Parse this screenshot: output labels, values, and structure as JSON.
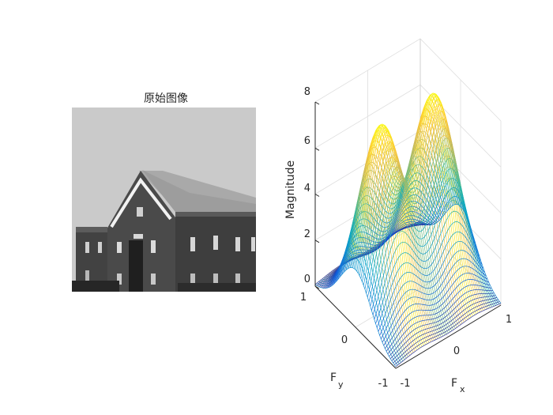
{
  "image_panel": {
    "title": "原始图像",
    "image_description_colors": {
      "sky": "#c9c9c9",
      "brick": "#3f3f3f",
      "roof": "#a8a8a8",
      "trim": "#f2f2f2"
    }
  },
  "chart_data": {
    "type": "surface",
    "surface_style": "mesh",
    "colormap": "parula",
    "xlabel": "F",
    "xlabel_subscript": "x",
    "ylabel": "F",
    "ylabel_subscript": "y",
    "zlabel": "Magnitude",
    "xlim": [
      -1,
      1
    ],
    "ylim": [
      -1,
      1
    ],
    "zlim": [
      0,
      8
    ],
    "xticks": [
      "-1",
      "0",
      "1"
    ],
    "yticks": [
      "-1",
      "0",
      "1"
    ],
    "zticks": [
      "0",
      "2",
      "4",
      "6",
      "8"
    ],
    "grid": true,
    "peaks": [
      {
        "fx": -0.5,
        "fy": 0.0,
        "magnitude": 8
      },
      {
        "fx": 0.5,
        "fy": 0.0,
        "magnitude": 8
      }
    ]
  },
  "colors": {
    "axis": "#262626",
    "grid": "#dedede",
    "parula": [
      "#352a87",
      "#0f5cdd",
      "#1481d6",
      "#06a4ca",
      "#2eb7a4",
      "#87bf77",
      "#d1bb59",
      "#fec832",
      "#f9fb0e"
    ]
  }
}
